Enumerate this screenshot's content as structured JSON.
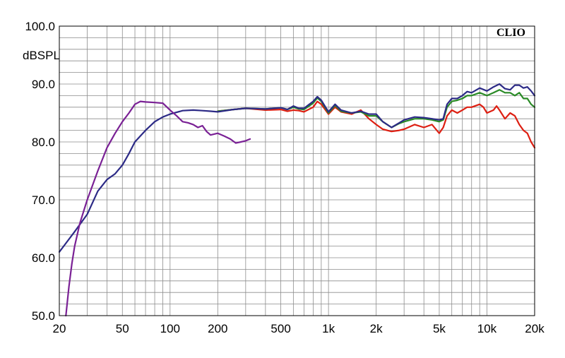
{
  "chart_data": {
    "type": "line",
    "brand": "CLIO",
    "ylabel": "dBSPL",
    "xscale": "log",
    "xlim": [
      20,
      20000
    ],
    "ylim": [
      50,
      100
    ],
    "grid": true,
    "y_ticks": [
      {
        "value": 100,
        "label": "100.0"
      },
      {
        "value": 90,
        "label": "90.0"
      },
      {
        "value": 80,
        "label": "80.0"
      },
      {
        "value": 70,
        "label": "70.0"
      },
      {
        "value": 60,
        "label": "60.0"
      },
      {
        "value": 50,
        "label": "50.0"
      }
    ],
    "x_ticks": [
      {
        "value": 20,
        "label": "20"
      },
      {
        "value": 50,
        "label": "50"
      },
      {
        "value": 100,
        "label": "100"
      },
      {
        "value": 200,
        "label": "200"
      },
      {
        "value": 500,
        "label": "500"
      },
      {
        "value": 1000,
        "label": "1k"
      },
      {
        "value": 2000,
        "label": "2k"
      },
      {
        "value": 5000,
        "label": "5k"
      },
      {
        "value": 10000,
        "label": "10k"
      },
      {
        "value": 20000,
        "label": "20k"
      }
    ],
    "series": [
      {
        "color": "#dd1f12",
        "points": [
          [
            200,
            85.3
          ],
          [
            250,
            85.6
          ],
          [
            300,
            85.8
          ],
          [
            400,
            85.5
          ],
          [
            500,
            85.6
          ],
          [
            550,
            85.3
          ],
          [
            600,
            85.5
          ],
          [
            650,
            85.4
          ],
          [
            700,
            85.2
          ],
          [
            800,
            86.0
          ],
          [
            850,
            87.0
          ],
          [
            900,
            86.5
          ],
          [
            1000,
            84.8
          ],
          [
            1100,
            86.0
          ],
          [
            1200,
            85.2
          ],
          [
            1400,
            84.8
          ],
          [
            1600,
            85.5
          ],
          [
            1800,
            84.0
          ],
          [
            2000,
            83.0
          ],
          [
            2200,
            82.2
          ],
          [
            2500,
            81.8
          ],
          [
            2800,
            82.0
          ],
          [
            3000,
            82.2
          ],
          [
            3500,
            83.0
          ],
          [
            4000,
            82.5
          ],
          [
            4500,
            83.0
          ],
          [
            5000,
            81.5
          ],
          [
            5300,
            82.5
          ],
          [
            5600,
            84.5
          ],
          [
            6000,
            85.5
          ],
          [
            6500,
            85.0
          ],
          [
            7000,
            85.5
          ],
          [
            7500,
            86.0
          ],
          [
            8000,
            86.0
          ],
          [
            9000,
            86.5
          ],
          [
            9500,
            86.0
          ],
          [
            10000,
            85.0
          ],
          [
            11000,
            85.5
          ],
          [
            11500,
            86.2
          ],
          [
            12000,
            85.5
          ],
          [
            13000,
            84.0
          ],
          [
            14000,
            85.0
          ],
          [
            15000,
            84.5
          ],
          [
            16000,
            83.0
          ],
          [
            17000,
            82.0
          ],
          [
            18000,
            81.5
          ],
          [
            19000,
            80.0
          ],
          [
            20000,
            79.0
          ]
        ]
      },
      {
        "color": "#2a8a26",
        "points": [
          [
            200,
            85.3
          ],
          [
            250,
            85.6
          ],
          [
            300,
            85.8
          ],
          [
            400,
            85.7
          ],
          [
            500,
            85.9
          ],
          [
            550,
            85.6
          ],
          [
            600,
            86.0
          ],
          [
            650,
            85.7
          ],
          [
            700,
            85.6
          ],
          [
            800,
            86.7
          ],
          [
            850,
            87.6
          ],
          [
            900,
            87.0
          ],
          [
            1000,
            85.0
          ],
          [
            1100,
            86.3
          ],
          [
            1200,
            85.3
          ],
          [
            1400,
            85.0
          ],
          [
            1600,
            85.2
          ],
          [
            1800,
            84.5
          ],
          [
            2000,
            84.5
          ],
          [
            2200,
            83.5
          ],
          [
            2500,
            82.5
          ],
          [
            2800,
            83.2
          ],
          [
            3000,
            83.5
          ],
          [
            3500,
            84.0
          ],
          [
            4000,
            84.0
          ],
          [
            4500,
            83.8
          ],
          [
            5000,
            83.5
          ],
          [
            5300,
            83.8
          ],
          [
            5600,
            86.0
          ],
          [
            6000,
            87.0
          ],
          [
            6500,
            87.2
          ],
          [
            7000,
            87.5
          ],
          [
            7500,
            88.0
          ],
          [
            8000,
            88.0
          ],
          [
            9000,
            88.5
          ],
          [
            10000,
            88.0
          ],
          [
            11000,
            88.5
          ],
          [
            12000,
            89.0
          ],
          [
            13000,
            88.5
          ],
          [
            14000,
            88.5
          ],
          [
            15000,
            88.0
          ],
          [
            16000,
            88.5
          ],
          [
            17000,
            87.5
          ],
          [
            18000,
            87.5
          ],
          [
            19000,
            86.5
          ],
          [
            20000,
            86.0
          ]
        ]
      },
      {
        "color": "#2c2a86",
        "points": [
          [
            20,
            61.0
          ],
          [
            22,
            62.5
          ],
          [
            25,
            64.5
          ],
          [
            30,
            67.5
          ],
          [
            35,
            71.5
          ],
          [
            40,
            73.5
          ],
          [
            45,
            74.5
          ],
          [
            50,
            76.0
          ],
          [
            55,
            78.0
          ],
          [
            60,
            80.0
          ],
          [
            70,
            82.0
          ],
          [
            80,
            83.5
          ],
          [
            90,
            84.3
          ],
          [
            100,
            84.8
          ],
          [
            120,
            85.4
          ],
          [
            140,
            85.5
          ],
          [
            160,
            85.4
          ],
          [
            180,
            85.3
          ],
          [
            200,
            85.2
          ],
          [
            250,
            85.6
          ],
          [
            300,
            85.8
          ],
          [
            400,
            85.7
          ],
          [
            500,
            85.9
          ],
          [
            550,
            85.6
          ],
          [
            600,
            86.2
          ],
          [
            650,
            85.8
          ],
          [
            700,
            85.8
          ],
          [
            800,
            87.0
          ],
          [
            850,
            87.8
          ],
          [
            900,
            87.2
          ],
          [
            1000,
            85.2
          ],
          [
            1100,
            86.5
          ],
          [
            1200,
            85.5
          ],
          [
            1400,
            85.0
          ],
          [
            1600,
            85.3
          ],
          [
            1800,
            84.8
          ],
          [
            2000,
            84.8
          ],
          [
            2200,
            83.5
          ],
          [
            2500,
            82.5
          ],
          [
            2800,
            83.3
          ],
          [
            3000,
            83.8
          ],
          [
            3500,
            84.3
          ],
          [
            4000,
            84.2
          ],
          [
            4500,
            84.0
          ],
          [
            5000,
            83.8
          ],
          [
            5300,
            84.0
          ],
          [
            5600,
            86.5
          ],
          [
            6000,
            87.5
          ],
          [
            6500,
            87.5
          ],
          [
            7000,
            88.0
          ],
          [
            7500,
            88.7
          ],
          [
            8000,
            88.5
          ],
          [
            9000,
            89.3
          ],
          [
            10000,
            88.8
          ],
          [
            11000,
            89.5
          ],
          [
            12000,
            90.0
          ],
          [
            13000,
            89.2
          ],
          [
            14000,
            89.0
          ],
          [
            15000,
            89.8
          ],
          [
            16000,
            89.8
          ],
          [
            17000,
            89.3
          ],
          [
            18000,
            89.5
          ],
          [
            19000,
            88.8
          ],
          [
            20000,
            88.0
          ]
        ]
      },
      {
        "color": "#7a2195",
        "points": [
          [
            22,
            50.0
          ],
          [
            23,
            55.0
          ],
          [
            24,
            59.0
          ],
          [
            25,
            62.0
          ],
          [
            27,
            66.0
          ],
          [
            30,
            70.0
          ],
          [
            35,
            75.0
          ],
          [
            40,
            79.0
          ],
          [
            45,
            81.5
          ],
          [
            50,
            83.5
          ],
          [
            55,
            85.0
          ],
          [
            60,
            86.5
          ],
          [
            65,
            87.0
          ],
          [
            70,
            86.9
          ],
          [
            80,
            86.8
          ],
          [
            90,
            86.7
          ],
          [
            100,
            85.5
          ],
          [
            110,
            84.5
          ],
          [
            120,
            83.5
          ],
          [
            130,
            83.3
          ],
          [
            140,
            83.0
          ],
          [
            150,
            82.5
          ],
          [
            160,
            82.8
          ],
          [
            170,
            81.8
          ],
          [
            180,
            81.2
          ],
          [
            200,
            81.5
          ],
          [
            220,
            81.0
          ],
          [
            240,
            80.5
          ],
          [
            260,
            79.8
          ],
          [
            280,
            80.0
          ],
          [
            300,
            80.2
          ],
          [
            320,
            80.5
          ]
        ]
      }
    ]
  }
}
